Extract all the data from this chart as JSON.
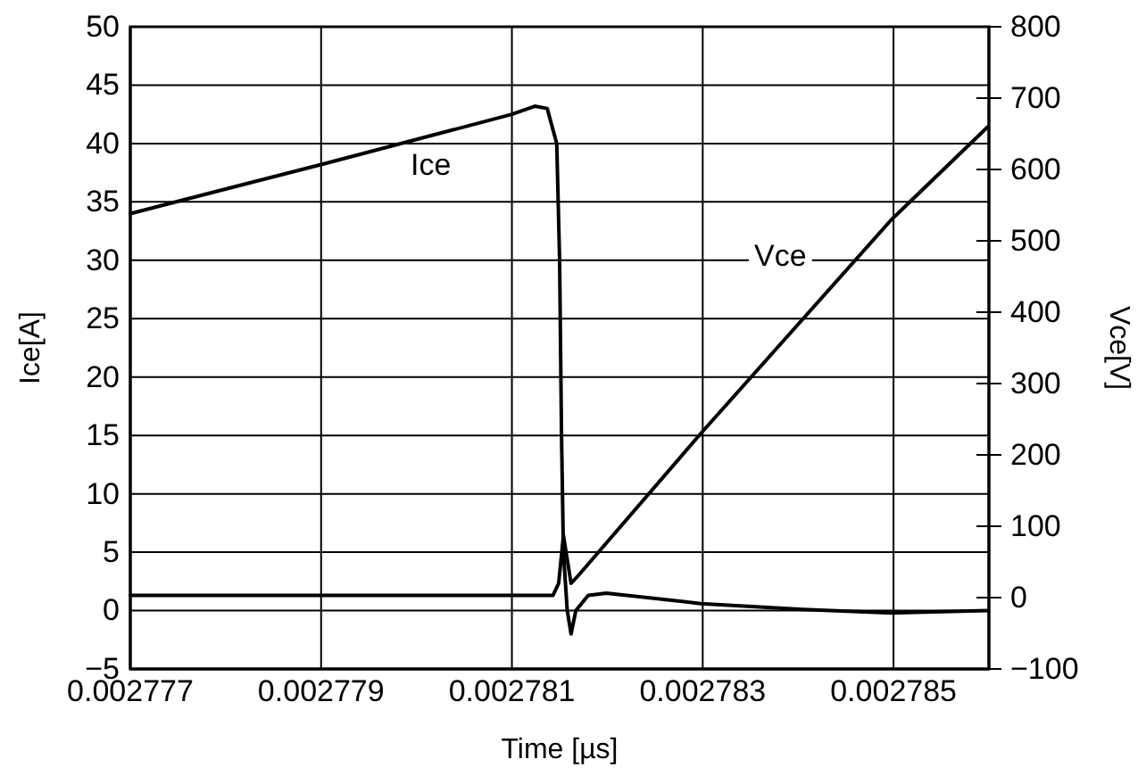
{
  "chart_data": {
    "type": "line",
    "xlabel": "Time [µs]",
    "ylabel": "Ice[A]",
    "y2label": "Vce[V]",
    "xlim": [
      0.002777,
      0.002786
    ],
    "xticks": [
      0.002777,
      0.002779,
      0.002781,
      0.002783,
      0.002785
    ],
    "ylim": [
      -5,
      50
    ],
    "yticks": [
      -5,
      0,
      5,
      10,
      15,
      20,
      25,
      30,
      35,
      40,
      45,
      50
    ],
    "y2lim": [
      -100,
      800
    ],
    "y2ticks": [
      -100,
      0,
      100,
      200,
      300,
      400,
      500,
      600,
      700,
      800
    ],
    "grid": true,
    "marker": "none",
    "line_style": "solid",
    "series": [
      {
        "name": "Ice",
        "color": "#000000",
        "x": [
          0.002777,
          0.002779,
          0.002781,
          0.00278124,
          0.00278137,
          0.00278147,
          0.0027815,
          0.00278152,
          0.00278154,
          0.00278158,
          0.00278162,
          0.00278167,
          0.0027818,
          0.00278199,
          0.00278298,
          0.00278405,
          0.00278498,
          0.00278599
        ],
        "values": [
          34,
          38.2,
          42.5,
          43.2,
          43,
          40,
          30,
          15,
          5,
          0,
          -2,
          0,
          1.3,
          1.5,
          0.6,
          0.1,
          -0.2,
          0
        ]
      },
      {
        "name": "Vce",
        "color": "#000000",
        "axis": "y2",
        "x": [
          0.002777,
          0.002779,
          0.002781,
          0.00278143,
          0.00278149,
          0.00278154,
          0.00278162,
          0.00278169,
          0.00278298,
          0.00278498,
          0.00278599
        ],
        "values": [
          3,
          3,
          3,
          3,
          20,
          87,
          20,
          30,
          230,
          530,
          660
        ]
      }
    ]
  }
}
